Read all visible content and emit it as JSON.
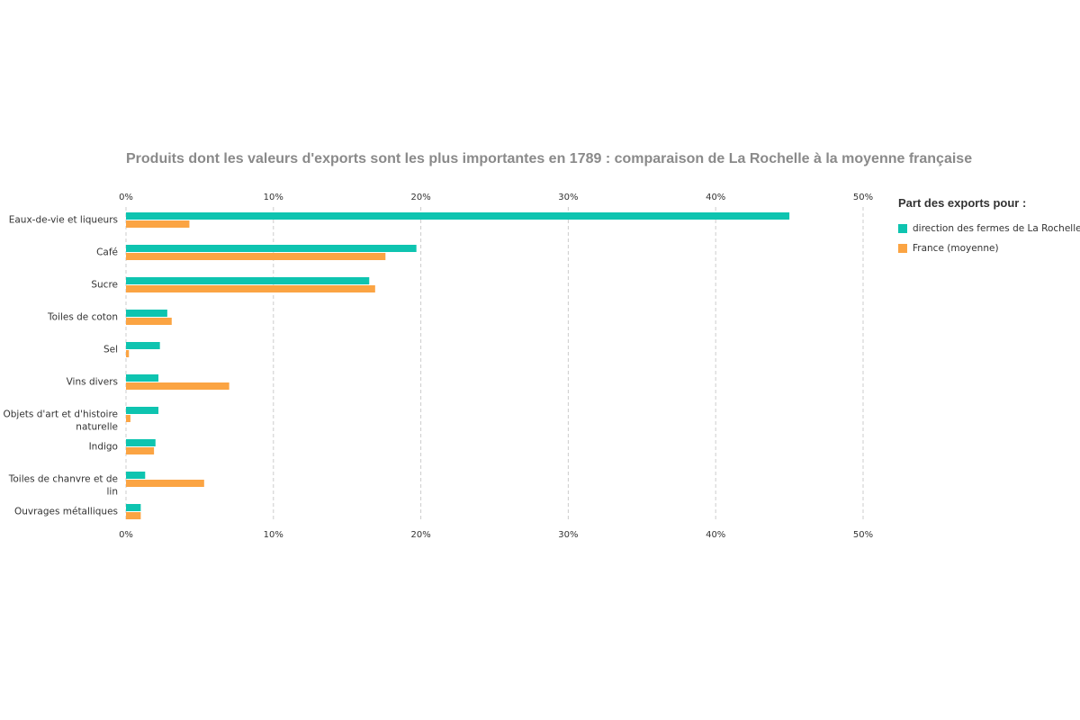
{
  "chart_data": {
    "type": "bar",
    "orientation": "horizontal",
    "title": "Produits dont les valeurs d'exports sont les plus importantes en 1789 : comparaison de La Rochelle à la moyenne française",
    "legend_title": "Part des exports pour :",
    "legend_position": "right",
    "grid": true,
    "xlim": [
      0,
      50
    ],
    "x_ticks": [
      "0%",
      "10%",
      "20%",
      "30%",
      "40%",
      "50%"
    ],
    "x_tick_values": [
      0,
      10,
      20,
      30,
      40,
      50
    ],
    "categories": [
      [
        "Eaux-de-vie et liqueurs"
      ],
      [
        "Café"
      ],
      [
        "Sucre"
      ],
      [
        "Toiles de coton"
      ],
      [
        "Sel"
      ],
      [
        "Vins divers"
      ],
      [
        "Objets d'art et d'histoire",
        "naturelle"
      ],
      [
        "Indigo"
      ],
      [
        "Toiles de chanvre et de",
        "lin"
      ],
      [
        "Ouvrages métalliques"
      ]
    ],
    "series": [
      {
        "name": "direction des fermes de La Rochelle",
        "color": "#0ec4b0",
        "values": [
          45.0,
          19.7,
          16.5,
          2.8,
          2.3,
          2.2,
          2.2,
          2.0,
          1.3,
          1.0
        ]
      },
      {
        "name": "France (moyenne)",
        "color": "#fba443",
        "values": [
          4.3,
          17.6,
          16.9,
          3.1,
          0.2,
          7.0,
          0.3,
          1.9,
          5.3,
          1.0
        ]
      }
    ]
  }
}
